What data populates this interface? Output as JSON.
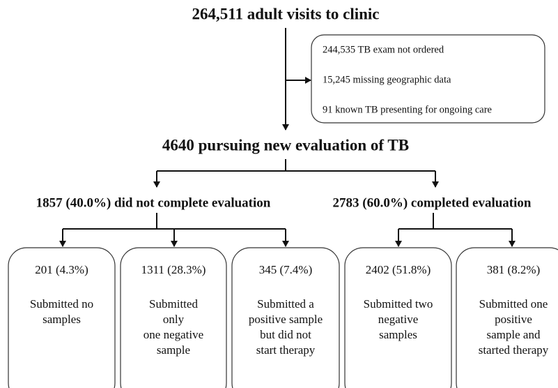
{
  "title": "264,511 adult visits to clinic",
  "exclusions": [
    "244,535 TB exam not ordered",
    "15,245 missing geographic data",
    "91 known TB presenting for ongoing care"
  ],
  "pursuing": "4640 pursuing new evaluation of TB",
  "branches": [
    {
      "label": "1857 (40.0%) did not complete evaluation"
    },
    {
      "label": "2783 (60.0%) completed evaluation"
    }
  ],
  "leaves": [
    {
      "count": "201 (4.3%)",
      "lines": [
        "Submitted no",
        "samples"
      ]
    },
    {
      "count": "1311 (28.3%)",
      "lines": [
        "Submitted",
        "only",
        "one negative",
        "sample"
      ]
    },
    {
      "count": "345 (7.4%)",
      "lines": [
        "Submitted a",
        "positive sample",
        "but did not",
        "start therapy"
      ]
    },
    {
      "count": "2402 (51.8%)",
      "lines": [
        "Submitted two",
        "negative",
        "samples"
      ]
    },
    {
      "count": "381 (8.2%)",
      "lines": [
        "Submitted one",
        "positive",
        "sample and",
        "started therapy"
      ]
    }
  ]
}
